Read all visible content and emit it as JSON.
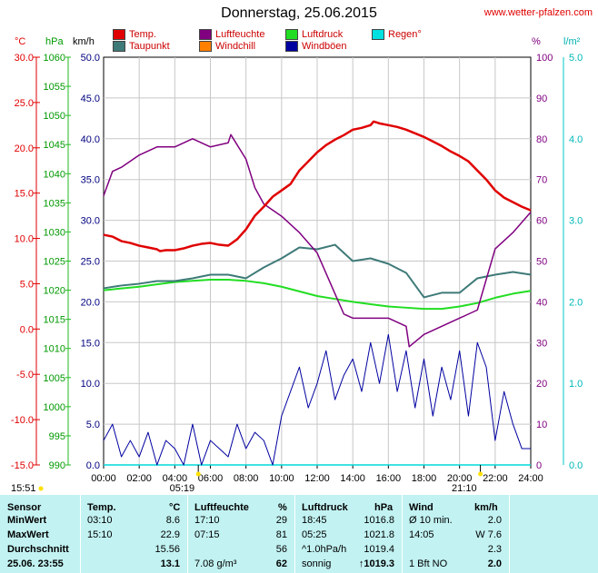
{
  "title": "Donnerstag, 25.06.2015",
  "site": "www.wetter-pfalzen.com",
  "legend": [
    {
      "label": "Temp.",
      "color": "#e00000"
    },
    {
      "label": "Taupunkt",
      "color": "#3e7a78"
    },
    {
      "label": "Luftfeuchte",
      "color": "#800080"
    },
    {
      "label": "Windchill",
      "color": "#ff8000"
    },
    {
      "label": "Luftdruck",
      "color": "#22dd22"
    },
    {
      "label": "Windböen",
      "color": "#0000a0"
    },
    {
      "label": "Regen°",
      "color": "#00e0e0"
    }
  ],
  "units": {
    "celsius": "°C",
    "hpa": "hPa",
    "kmh": "km/h",
    "percent": "%",
    "lm2": "l/m²"
  },
  "colors": {
    "temp": "#e00000",
    "dew": "#3e7a78",
    "hum": "#800080",
    "press": "#22dd22",
    "wind": "#0000a0",
    "rain": "#00d8d8"
  },
  "chart_data": {
    "type": "line",
    "x_ticks": [
      "00:00",
      "02:00",
      "04:00",
      "06:00",
      "08:00",
      "10:00",
      "12:00",
      "14:00",
      "16:00",
      "18:00",
      "20:00",
      "22:00",
      "24:00"
    ],
    "y_temp_ticks": [
      "30.0",
      "25.0",
      "20.0",
      "15.0",
      "10.0",
      "5.0",
      "0.0",
      "-5.0",
      "-10.0",
      "-15.0"
    ],
    "y_press_ticks": [
      "1060",
      "1055",
      "1050",
      "1045",
      "1040",
      "1035",
      "1030",
      "1025",
      "1020",
      "1015",
      "1010",
      "1005",
      "1000",
      "995",
      "990"
    ],
    "y_wind_ticks": [
      "50.0",
      "45.0",
      "40.0",
      "35.0",
      "30.0",
      "25.0",
      "20.0",
      "15.0",
      "10.0",
      "5.0",
      "0.0"
    ],
    "y_hum_ticks": [
      "100",
      "90",
      "80",
      "70",
      "60",
      "50",
      "40",
      "30",
      "20",
      "10",
      "0"
    ],
    "y_rain_ticks": [
      "5.0",
      "4.0",
      "3.0",
      "2.0",
      "1.0",
      "0.0"
    ],
    "ranges": {
      "x": [
        0,
        24
      ],
      "temp": [
        -15,
        30
      ],
      "press": [
        990,
        1060
      ],
      "wind": [
        0,
        50
      ],
      "hum": [
        0,
        100
      ],
      "rain": [
        0,
        5
      ]
    },
    "series": [
      {
        "name": "Temp.",
        "unit": "°C",
        "x": [
          0,
          0.5,
          1,
          1.5,
          2,
          2.5,
          3,
          3.17,
          3.5,
          4,
          4.5,
          5,
          5.5,
          6,
          6.5,
          7,
          7.5,
          8,
          8.5,
          9,
          9.5,
          10,
          10.5,
          11,
          11.5,
          12,
          12.5,
          13,
          13.5,
          14,
          14.5,
          15,
          15.17,
          15.5,
          16,
          16.5,
          17,
          17.5,
          18,
          18.5,
          19,
          19.5,
          20,
          20.5,
          21,
          21.5,
          22,
          22.5,
          23,
          23.5,
          24
        ],
        "y": [
          10.4,
          10.2,
          9.7,
          9.5,
          9.2,
          9.0,
          8.8,
          8.6,
          8.7,
          8.7,
          8.9,
          9.2,
          9.4,
          9.5,
          9.3,
          9.2,
          9.9,
          11.0,
          12.5,
          13.5,
          14.6,
          15.3,
          16.0,
          17.5,
          18.5,
          19.5,
          20.3,
          20.9,
          21.4,
          22.0,
          22.2,
          22.5,
          22.9,
          22.7,
          22.5,
          22.3,
          22.0,
          21.6,
          21.2,
          20.7,
          20.2,
          19.6,
          19.1,
          18.5,
          17.5,
          16.5,
          15.3,
          14.5,
          14.0,
          13.5,
          13.1
        ]
      },
      {
        "name": "Taupunkt",
        "unit": "°C",
        "x": [
          0,
          1,
          2,
          3,
          4,
          5,
          6,
          7,
          8,
          9,
          10,
          11,
          12,
          13,
          14,
          15,
          16,
          17,
          18,
          19,
          20,
          21,
          22,
          23,
          24
        ],
        "y": [
          4.5,
          4.8,
          5.0,
          5.3,
          5.3,
          5.6,
          6.0,
          6.0,
          5.6,
          6.8,
          7.8,
          9.0,
          8.8,
          9.3,
          7.5,
          7.8,
          7.2,
          6.2,
          3.5,
          4.0,
          4.0,
          5.6,
          6.0,
          6.3,
          6.0
        ]
      },
      {
        "name": "Luftfeuchte",
        "unit": "%",
        "x": [
          0,
          0.5,
          1,
          2,
          3,
          4,
          5,
          6,
          7,
          7.15,
          8,
          8.5,
          9,
          10,
          11,
          12,
          13,
          13.5,
          14,
          15,
          16,
          17,
          17.17,
          18,
          19,
          20,
          20.5,
          21,
          22,
          23,
          24
        ],
        "y": [
          66,
          72,
          73,
          76,
          78,
          78,
          80,
          78,
          79,
          81,
          75,
          68,
          64,
          61,
          57,
          52,
          42,
          37,
          36,
          36,
          36,
          34,
          29,
          32,
          34,
          36,
          37,
          38,
          53,
          57,
          62
        ]
      },
      {
        "name": "Luftdruck",
        "unit": "hPa",
        "x": [
          0,
          1,
          2,
          3,
          4,
          5,
          6,
          7,
          8,
          9,
          10,
          11,
          12,
          13,
          14,
          15,
          16,
          17,
          18,
          19,
          20,
          21,
          22,
          23,
          24
        ],
        "y": [
          1020.0,
          1020.3,
          1020.6,
          1021.0,
          1021.4,
          1021.6,
          1021.8,
          1021.8,
          1021.6,
          1021.2,
          1020.6,
          1019.8,
          1019.0,
          1018.5,
          1018.0,
          1017.6,
          1017.2,
          1017.0,
          1016.8,
          1016.8,
          1017.2,
          1017.8,
          1018.7,
          1019.4,
          1019.9
        ]
      },
      {
        "name": "Windböen",
        "unit": "km/h",
        "x": [
          0,
          0.5,
          1,
          1.5,
          2,
          2.5,
          3,
          3.5,
          4,
          4.5,
          5,
          5.5,
          6,
          6.5,
          7,
          7.5,
          8,
          8.5,
          9,
          9.5,
          10,
          10.5,
          11,
          11.5,
          12,
          12.5,
          13,
          13.5,
          14,
          14.5,
          15,
          15.5,
          16,
          16.5,
          17,
          17.5,
          18,
          18.5,
          19,
          19.5,
          20,
          20.5,
          21,
          21.5,
          22,
          22.5,
          23,
          23.5,
          24
        ],
        "y": [
          3,
          5,
          1,
          3,
          1,
          4,
          0,
          3,
          2,
          0,
          5,
          0,
          3,
          2,
          1,
          5,
          2,
          4,
          3,
          0,
          6,
          9,
          12,
          7,
          10,
          14,
          8,
          11,
          13,
          9,
          15,
          10,
          16,
          9,
          14,
          7,
          13,
          6,
          12,
          8,
          14,
          6,
          15,
          12,
          3,
          9,
          5,
          2,
          2
        ]
      },
      {
        "name": "Regen°",
        "unit": "l/m²",
        "x": [
          0,
          24
        ],
        "y": [
          0,
          0
        ]
      }
    ],
    "markers": [
      {
        "label": "05:19",
        "x": 5.32
      },
      {
        "label": "21:10",
        "x": 21.17
      }
    ],
    "left_label": "15:51"
  },
  "table": {
    "headers": [
      "Sensor",
      "Temp.",
      "°C",
      "Luftfeuchte",
      "%",
      "Luftdruck",
      "hPa",
      "Wind",
      "km/h"
    ],
    "rows": [
      {
        "label": "MinWert",
        "t_time": "03:10",
        "t_val": "8.6",
        "h_time": "17:10",
        "h_val": "29",
        "p_time": "18:45",
        "p_val": "1016.8",
        "w_desc": "Ø 10 min.",
        "w_val": "2.0"
      },
      {
        "label": "MaxWert",
        "t_time": "15:10",
        "t_val": "22.9",
        "h_time": "07:15",
        "h_val": "81",
        "p_time": "05:25",
        "p_val": "1021.8",
        "w_desc": "14:05",
        "w_val": "W 7.6"
      },
      {
        "label": "Durchschnitt",
        "t_time": "",
        "t_val": "15.56",
        "h_time": "",
        "h_val": "56",
        "p_time": "^1.0hPa/h",
        "p_val": "1019.4",
        "w_desc": "",
        "w_val": "2.3"
      },
      {
        "label": "25.06.  23:55",
        "t_time": "",
        "t_val": "13.1",
        "h_time": "7.08 g/m³",
        "h_val": "62",
        "p_time": "sonnig",
        "p_val": "↑1019.3",
        "w_desc": "1 Bft NO",
        "w_val": "2.0"
      }
    ]
  }
}
